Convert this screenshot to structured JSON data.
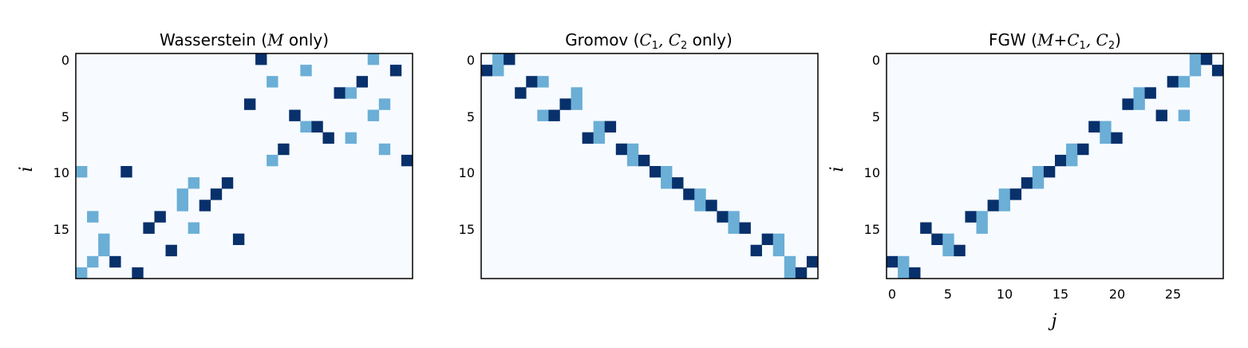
{
  "colors": {
    "background": "#f7fbff",
    "high": "#08306b",
    "mid": "#6baed6",
    "frame": "#000000"
  },
  "chart_data": [
    {
      "type": "heatmap",
      "title": "Wasserstein (M only)",
      "title_parts": {
        "text_before": "Wasserstein (",
        "math": "M",
        "text_after": " only)"
      },
      "ylabel": "i",
      "xlabel": "",
      "rows": 20,
      "cols": 30,
      "yticks": [
        "0",
        "5",
        "10",
        "15"
      ],
      "xticks": [],
      "cells": [
        {
          "row": 0,
          "col": 16,
          "level": "high"
        },
        {
          "row": 0,
          "col": 26,
          "level": "mid"
        },
        {
          "row": 1,
          "col": 20,
          "level": "mid"
        },
        {
          "row": 1,
          "col": 28,
          "level": "high"
        },
        {
          "row": 2,
          "col": 17,
          "level": "mid"
        },
        {
          "row": 2,
          "col": 25,
          "level": "high"
        },
        {
          "row": 3,
          "col": 23,
          "level": "high"
        },
        {
          "row": 3,
          "col": 24,
          "level": "mid"
        },
        {
          "row": 4,
          "col": 15,
          "level": "high"
        },
        {
          "row": 4,
          "col": 27,
          "level": "mid"
        },
        {
          "row": 5,
          "col": 19,
          "level": "high"
        },
        {
          "row": 5,
          "col": 26,
          "level": "mid"
        },
        {
          "row": 6,
          "col": 20,
          "level": "mid"
        },
        {
          "row": 6,
          "col": 21,
          "level": "high"
        },
        {
          "row": 7,
          "col": 22,
          "level": "high"
        },
        {
          "row": 7,
          "col": 24,
          "level": "mid"
        },
        {
          "row": 8,
          "col": 18,
          "level": "high"
        },
        {
          "row": 8,
          "col": 27,
          "level": "mid"
        },
        {
          "row": 9,
          "col": 17,
          "level": "mid"
        },
        {
          "row": 9,
          "col": 29,
          "level": "high"
        },
        {
          "row": 10,
          "col": 0,
          "level": "mid"
        },
        {
          "row": 10,
          "col": 4,
          "level": "high"
        },
        {
          "row": 11,
          "col": 10,
          "level": "mid"
        },
        {
          "row": 11,
          "col": 13,
          "level": "high"
        },
        {
          "row": 12,
          "col": 9,
          "level": "mid"
        },
        {
          "row": 12,
          "col": 12,
          "level": "high"
        },
        {
          "row": 13,
          "col": 9,
          "level": "mid"
        },
        {
          "row": 13,
          "col": 11,
          "level": "high"
        },
        {
          "row": 14,
          "col": 1,
          "level": "mid"
        },
        {
          "row": 14,
          "col": 7,
          "level": "high"
        },
        {
          "row": 15,
          "col": 6,
          "level": "high"
        },
        {
          "row": 15,
          "col": 10,
          "level": "mid"
        },
        {
          "row": 16,
          "col": 2,
          "level": "mid"
        },
        {
          "row": 16,
          "col": 14,
          "level": "high"
        },
        {
          "row": 17,
          "col": 2,
          "level": "mid"
        },
        {
          "row": 17,
          "col": 8,
          "level": "high"
        },
        {
          "row": 18,
          "col": 1,
          "level": "mid"
        },
        {
          "row": 18,
          "col": 3,
          "level": "high"
        },
        {
          "row": 19,
          "col": 0,
          "level": "mid"
        },
        {
          "row": 19,
          "col": 5,
          "level": "high"
        }
      ]
    },
    {
      "type": "heatmap",
      "title": "Gromov (C1,C2 only)",
      "title_parts": {
        "text_before": "Gromov (",
        "math": "C",
        "sub1": "1",
        "mid": ", C",
        "sub2": "2",
        "text_after": " only)"
      },
      "ylabel": "",
      "xlabel": "",
      "rows": 20,
      "cols": 30,
      "yticks": [
        "0",
        "5",
        "10",
        "15"
      ],
      "xticks": [],
      "cells": [
        {
          "row": 0,
          "col": 1,
          "level": "mid"
        },
        {
          "row": 0,
          "col": 2,
          "level": "high"
        },
        {
          "row": 1,
          "col": 0,
          "level": "high"
        },
        {
          "row": 1,
          "col": 1,
          "level": "mid"
        },
        {
          "row": 2,
          "col": 4,
          "level": "high"
        },
        {
          "row": 2,
          "col": 5,
          "level": "mid"
        },
        {
          "row": 3,
          "col": 3,
          "level": "high"
        },
        {
          "row": 3,
          "col": 8,
          "level": "mid"
        },
        {
          "row": 4,
          "col": 7,
          "level": "high"
        },
        {
          "row": 4,
          "col": 8,
          "level": "mid"
        },
        {
          "row": 5,
          "col": 5,
          "level": "mid"
        },
        {
          "row": 5,
          "col": 6,
          "level": "high"
        },
        {
          "row": 6,
          "col": 10,
          "level": "mid"
        },
        {
          "row": 6,
          "col": 11,
          "level": "high"
        },
        {
          "row": 7,
          "col": 9,
          "level": "high"
        },
        {
          "row": 7,
          "col": 10,
          "level": "mid"
        },
        {
          "row": 8,
          "col": 12,
          "level": "high"
        },
        {
          "row": 8,
          "col": 13,
          "level": "mid"
        },
        {
          "row": 9,
          "col": 13,
          "level": "mid"
        },
        {
          "row": 9,
          "col": 14,
          "level": "high"
        },
        {
          "row": 10,
          "col": 15,
          "level": "high"
        },
        {
          "row": 10,
          "col": 16,
          "level": "mid"
        },
        {
          "row": 11,
          "col": 16,
          "level": "mid"
        },
        {
          "row": 11,
          "col": 17,
          "level": "high"
        },
        {
          "row": 12,
          "col": 18,
          "level": "high"
        },
        {
          "row": 12,
          "col": 19,
          "level": "mid"
        },
        {
          "row": 13,
          "col": 19,
          "level": "mid"
        },
        {
          "row": 13,
          "col": 20,
          "level": "high"
        },
        {
          "row": 14,
          "col": 21,
          "level": "high"
        },
        {
          "row": 14,
          "col": 22,
          "level": "mid"
        },
        {
          "row": 15,
          "col": 22,
          "level": "mid"
        },
        {
          "row": 15,
          "col": 23,
          "level": "high"
        },
        {
          "row": 16,
          "col": 25,
          "level": "high"
        },
        {
          "row": 16,
          "col": 26,
          "level": "mid"
        },
        {
          "row": 17,
          "col": 24,
          "level": "high"
        },
        {
          "row": 17,
          "col": 26,
          "level": "mid"
        },
        {
          "row": 18,
          "col": 27,
          "level": "mid"
        },
        {
          "row": 18,
          "col": 29,
          "level": "high"
        },
        {
          "row": 19,
          "col": 27,
          "level": "mid"
        },
        {
          "row": 19,
          "col": 28,
          "level": "high"
        }
      ]
    },
    {
      "type": "heatmap",
      "title": "FGW (M+C1,C2)",
      "title_parts": {
        "text_before": "FGW  (",
        "math": "M+C",
        "sub1": "1",
        "mid": ", C",
        "sub2": "2",
        "text_after": ")"
      },
      "ylabel": "i",
      "xlabel": "j",
      "rows": 20,
      "cols": 30,
      "yticks": [
        "0",
        "5",
        "10",
        "15"
      ],
      "xticks": [
        "0",
        "5",
        "10",
        "15",
        "20",
        "25"
      ],
      "cells": [
        {
          "row": 0,
          "col": 27,
          "level": "mid"
        },
        {
          "row": 0,
          "col": 28,
          "level": "high"
        },
        {
          "row": 1,
          "col": 27,
          "level": "mid"
        },
        {
          "row": 1,
          "col": 29,
          "level": "high"
        },
        {
          "row": 2,
          "col": 25,
          "level": "high"
        },
        {
          "row": 2,
          "col": 26,
          "level": "mid"
        },
        {
          "row": 3,
          "col": 22,
          "level": "mid"
        },
        {
          "row": 3,
          "col": 23,
          "level": "high"
        },
        {
          "row": 4,
          "col": 21,
          "level": "high"
        },
        {
          "row": 4,
          "col": 22,
          "level": "mid"
        },
        {
          "row": 5,
          "col": 24,
          "level": "high"
        },
        {
          "row": 5,
          "col": 26,
          "level": "mid"
        },
        {
          "row": 6,
          "col": 18,
          "level": "high"
        },
        {
          "row": 6,
          "col": 19,
          "level": "mid"
        },
        {
          "row": 7,
          "col": 19,
          "level": "mid"
        },
        {
          "row": 7,
          "col": 20,
          "level": "high"
        },
        {
          "row": 8,
          "col": 16,
          "level": "mid"
        },
        {
          "row": 8,
          "col": 17,
          "level": "high"
        },
        {
          "row": 9,
          "col": 15,
          "level": "high"
        },
        {
          "row": 9,
          "col": 16,
          "level": "mid"
        },
        {
          "row": 10,
          "col": 13,
          "level": "mid"
        },
        {
          "row": 10,
          "col": 14,
          "level": "high"
        },
        {
          "row": 11,
          "col": 12,
          "level": "high"
        },
        {
          "row": 11,
          "col": 13,
          "level": "mid"
        },
        {
          "row": 12,
          "col": 10,
          "level": "mid"
        },
        {
          "row": 12,
          "col": 11,
          "level": "high"
        },
        {
          "row": 13,
          "col": 9,
          "level": "high"
        },
        {
          "row": 13,
          "col": 10,
          "level": "mid"
        },
        {
          "row": 14,
          "col": 7,
          "level": "high"
        },
        {
          "row": 14,
          "col": 8,
          "level": "mid"
        },
        {
          "row": 15,
          "col": 3,
          "level": "high"
        },
        {
          "row": 15,
          "col": 8,
          "level": "mid"
        },
        {
          "row": 16,
          "col": 4,
          "level": "high"
        },
        {
          "row": 16,
          "col": 5,
          "level": "mid"
        },
        {
          "row": 17,
          "col": 5,
          "level": "mid"
        },
        {
          "row": 17,
          "col": 6,
          "level": "high"
        },
        {
          "row": 18,
          "col": 0,
          "level": "high"
        },
        {
          "row": 18,
          "col": 1,
          "level": "mid"
        },
        {
          "row": 19,
          "col": 1,
          "level": "mid"
        },
        {
          "row": 19,
          "col": 2,
          "level": "high"
        }
      ]
    }
  ]
}
